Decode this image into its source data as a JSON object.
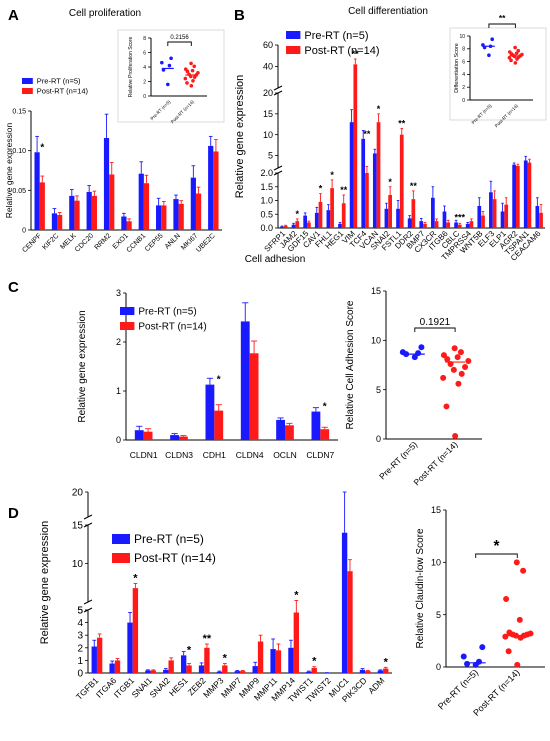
{
  "colors": {
    "pre": "#1a1aff",
    "post": "#ff1a1a",
    "axis": "#000000"
  },
  "panels": {
    "A": {
      "letter": "A",
      "title": "Cell proliferation"
    },
    "B": {
      "letter": "B",
      "title": "Cell differentiation"
    },
    "C": {
      "letter": "C",
      "title": "Cell adhesion"
    },
    "D": {
      "letter": "D",
      "title": ""
    }
  },
  "chart_data": [
    {
      "id": "A-bar",
      "type": "bar",
      "ylabel": "Relative gene expression",
      "ylim": [
        0,
        0.15
      ],
      "yticks": [
        0,
        0.05,
        0.1,
        0.15
      ],
      "ytick_labels": [
        "0",
        "0.05",
        "0.10",
        "0.15"
      ],
      "categories": [
        "CENPF",
        "KIF2C",
        "MELK",
        "CDC20",
        "RRM2",
        "EXO1",
        "CCNB1",
        "CEP55",
        "ANLN",
        "MKI67",
        "UBE2C"
      ],
      "series": [
        {
          "name": "Pre-RT (n=5)",
          "values": [
            0.098,
            0.021,
            0.043,
            0.048,
            0.116,
            0.017,
            0.071,
            0.031,
            0.039,
            0.066,
            0.106
          ],
          "errors": [
            0.02,
            0.006,
            0.008,
            0.008,
            0.03,
            0.004,
            0.015,
            0.009,
            0.005,
            0.015,
            0.012
          ]
        },
        {
          "name": "Post-RT (n=14)",
          "values": [
            0.06,
            0.019,
            0.037,
            0.043,
            0.07,
            0.011,
            0.059,
            0.031,
            0.033,
            0.046,
            0.099
          ],
          "errors": [
            0.008,
            0.003,
            0.006,
            0.006,
            0.015,
            0.003,
            0.01,
            0.005,
            0.004,
            0.008,
            0.015
          ]
        }
      ],
      "significance": [
        {
          "index": 0,
          "label": "*"
        }
      ]
    },
    {
      "id": "A-score",
      "type": "scatter",
      "ylabel": "Relative Proliferation Score",
      "ylim": [
        0,
        8
      ],
      "yticks": [
        0,
        2,
        4,
        6,
        8
      ],
      "categories": [
        "Pre-RT (n=5)",
        "Post-RT (n=14)"
      ],
      "series": [
        {
          "name": "Pre-RT (n=5)",
          "values": [
            1.6,
            3.6,
            4.2,
            4.6,
            5.2
          ],
          "center": 3.8
        },
        {
          "name": "Post-RT (n=14)",
          "values": [
            1.4,
            1.8,
            2.1,
            2.4,
            2.6,
            2.7,
            2.9,
            3.0,
            3.2,
            3.4,
            3.5,
            3.7,
            4.1,
            4.5
          ],
          "center": 2.9
        }
      ],
      "pvalue": "0.2156"
    },
    {
      "id": "B-bar",
      "type": "bar",
      "ylabel": "Relative gene expression",
      "segments": [
        {
          "range": [
            0,
            2
          ],
          "ticks": [
            0,
            0.5,
            1,
            1.5,
            2
          ],
          "tick_labels": [
            "0.0",
            "0.5",
            "1.0",
            "1.5",
            "2.0"
          ]
        },
        {
          "range": [
            2,
            20
          ],
          "ticks": [
            5,
            10,
            15,
            20
          ],
          "tick_labels": [
            "5",
            "10",
            "15",
            "20"
          ]
        },
        {
          "range": [
            20,
            60
          ],
          "ticks": [
            40,
            60
          ],
          "tick_labels": [
            "40",
            "60"
          ]
        }
      ],
      "categories": [
        "SFRP1",
        "JAM2",
        "GDF15",
        "CAV1",
        "FHL1",
        "HEG1",
        "VIM",
        "TCF4",
        "VCAN",
        "SNAI2",
        "FSTL1",
        "DDR2",
        "BMP7",
        "CX3CR",
        "ITGB6",
        "CBLC",
        "TMPRSS4",
        "WNT5B",
        "ELF3",
        "ELP1",
        "AGR2",
        "TSPAN1",
        "CEACAM6"
      ],
      "series": [
        {
          "name": "Pre-RT (n=5)",
          "values": [
            0.05,
            0.12,
            0.45,
            0.55,
            0.65,
            0.15,
            13.0,
            9.0,
            5.5,
            0.7,
            0.7,
            0.35,
            0.25,
            1.1,
            0.6,
            0.2,
            0.15,
            0.8,
            1.3,
            0.6,
            2.8,
            3.8,
            0.8
          ],
          "errors": [
            0.02,
            0.05,
            0.1,
            0.2,
            0.2,
            0.05,
            3.0,
            2.0,
            1.0,
            0.2,
            0.3,
            0.1,
            0.1,
            0.4,
            0.2,
            0.08,
            0.05,
            0.3,
            0.4,
            0.3,
            0.4,
            1.0,
            0.3
          ]
        },
        {
          "name": "Post-RT (n=14)",
          "values": [
            0.08,
            0.25,
            0.2,
            0.95,
            1.45,
            0.9,
            42.0,
            2.0,
            13.0,
            1.2,
            10.0,
            1.05,
            0.15,
            0.25,
            0.2,
            0.12,
            0.25,
            0.45,
            1.05,
            0.85,
            2.5,
            3.3,
            0.55
          ],
          "errors": [
            0.02,
            0.08,
            0.05,
            0.3,
            0.3,
            0.3,
            5.0,
            0.4,
            2.0,
            0.3,
            1.5,
            0.3,
            0.05,
            0.08,
            0.08,
            0.05,
            0.08,
            0.15,
            0.3,
            0.25,
            0.4,
            0.8,
            0.3
          ]
        }
      ],
      "significance": [
        {
          "index": 1,
          "label": "*"
        },
        {
          "index": 3,
          "label": "*"
        },
        {
          "index": 4,
          "label": "*"
        },
        {
          "index": 5,
          "label": "**"
        },
        {
          "index": 6,
          "label": "**"
        },
        {
          "index": 7,
          "label": "**"
        },
        {
          "index": 8,
          "label": "*"
        },
        {
          "index": 9,
          "label": "*"
        },
        {
          "index": 10,
          "label": "**"
        },
        {
          "index": 11,
          "label": "**"
        },
        {
          "index": 15,
          "label": "***"
        }
      ]
    },
    {
      "id": "B-score",
      "type": "scatter",
      "ylabel": "Differentiation Score",
      "ylim": [
        0,
        10
      ],
      "yticks": [
        0,
        2,
        4,
        6,
        8,
        10
      ],
      "categories": [
        "Pre-RT (n=5)",
        "Post-RT (n=14)"
      ],
      "series": [
        {
          "name": "Pre-RT (n=5)",
          "values": [
            7.0,
            8.2,
            8.4,
            8.6,
            9.5
          ],
          "center": 8.4
        },
        {
          "name": "Post-RT (n=14)",
          "values": [
            5.8,
            6.2,
            6.4,
            6.6,
            6.7,
            6.8,
            6.9,
            7.0,
            7.1,
            7.2,
            7.3,
            7.5,
            7.7,
            8.2
          ],
          "center": 6.9
        }
      ],
      "significance_label": "**"
    },
    {
      "id": "C-bar",
      "type": "bar",
      "ylabel": "Relative gene expression",
      "ylim": [
        0,
        3
      ],
      "yticks": [
        0,
        1,
        2,
        3
      ],
      "categories": [
        "CLDN1",
        "CLDN3",
        "CDH1",
        "CLDN4",
        "OCLN",
        "CLDN7"
      ],
      "series": [
        {
          "name": "Pre-RT (n=5)",
          "values": [
            0.2,
            0.1,
            1.13,
            2.42,
            0.41,
            0.58
          ],
          "errors": [
            0.08,
            0.03,
            0.13,
            0.38,
            0.04,
            0.08
          ]
        },
        {
          "name": "Post-RT (n=14)",
          "values": [
            0.17,
            0.07,
            0.6,
            1.77,
            0.3,
            0.22
          ],
          "errors": [
            0.06,
            0.02,
            0.12,
            0.25,
            0.04,
            0.04
          ]
        }
      ],
      "significance": [
        {
          "index": 2,
          "label": "*"
        },
        {
          "index": 5,
          "label": "*"
        }
      ]
    },
    {
      "id": "C-score",
      "type": "scatter",
      "ylabel": "Relative Cell Adhesion Score",
      "ylim": [
        0,
        15
      ],
      "yticks": [
        0,
        5,
        10,
        15
      ],
      "categories": [
        "Pre-RT (n=5)",
        "Post-RT (n=14)"
      ],
      "series": [
        {
          "name": "Pre-RT (n=5)",
          "values": [
            8.3,
            8.6,
            8.7,
            8.8,
            9.3
          ],
          "center": 8.6
        },
        {
          "name": "Post-RT (n=14)",
          "values": [
            0.3,
            3.3,
            5.6,
            6.2,
            6.6,
            7.0,
            7.3,
            7.6,
            7.9,
            8.1,
            8.3,
            8.5,
            8.8,
            9.2
          ],
          "center": 7.8
        }
      ],
      "pvalue": "0.1921"
    },
    {
      "id": "D-bar",
      "type": "bar",
      "ylabel": "Relative gene expression",
      "segments": [
        {
          "range": [
            0,
            5
          ],
          "ticks": [
            0,
            1,
            2,
            3,
            4,
            5
          ],
          "tick_labels": [
            "0",
            "1",
            "2",
            "3",
            "4",
            "5"
          ]
        },
        {
          "range": [
            5,
            15
          ],
          "ticks": [
            5,
            10,
            15
          ],
          "tick_labels": [
            "5",
            "10",
            "15"
          ]
        },
        {
          "range": [
            15,
            20
          ],
          "ticks": [
            20
          ],
          "tick_labels": [
            "20"
          ]
        }
      ],
      "categories": [
        "TGFB1",
        "ITGA6",
        "ITGB1",
        "SNAI1",
        "SNAI2",
        "HES1",
        "ZEB2",
        "MMP3",
        "MMP7",
        "MMP9",
        "MMP11",
        "MMP14",
        "TWIST1",
        "TWIST2",
        "MUC1",
        "PIK3CD",
        "ADM"
      ],
      "series": [
        {
          "name": "Pre-RT (n=5)",
          "values": [
            2.1,
            0.75,
            4.0,
            0.2,
            0.25,
            1.4,
            0.6,
            0.1,
            0.15,
            0.55,
            1.9,
            2.0,
            0.1,
            0.02,
            14.0,
            0.25,
            0.2
          ],
          "errors": [
            0.5,
            0.2,
            0.8,
            0.05,
            0.1,
            0.3,
            0.2,
            0.05,
            0.05,
            0.3,
            0.8,
            0.6,
            0.05,
            0.01,
            6.0,
            0.1,
            0.05
          ]
        },
        {
          "name": "Post-RT (n=14)",
          "values": [
            2.8,
            1.0,
            6.8,
            0.2,
            1.0,
            0.6,
            2.0,
            0.6,
            0.15,
            2.5,
            1.8,
            4.8,
            0.4,
            0.0,
            9.0,
            0.15,
            0.35
          ],
          "errors": [
            0.3,
            0.15,
            0.6,
            0.05,
            0.2,
            0.15,
            0.3,
            0.15,
            0.05,
            0.5,
            0.5,
            0.4,
            0.1,
            0.0,
            1.5,
            0.05,
            0.1
          ]
        }
      ],
      "significance": [
        {
          "index": 2,
          "label": "*"
        },
        {
          "index": 5,
          "label": "*"
        },
        {
          "index": 6,
          "label": "**"
        },
        {
          "index": 7,
          "label": "*"
        },
        {
          "index": 11,
          "label": "*"
        },
        {
          "index": 12,
          "label": "*"
        },
        {
          "index": 16,
          "label": "*"
        }
      ]
    },
    {
      "id": "D-score",
      "type": "scatter",
      "ylabel": "Relative Claudin-low Score",
      "ylim": [
        0,
        15
      ],
      "yticks": [
        0,
        5,
        10,
        15
      ],
      "categories": [
        "Pre-RT (n=5)",
        "Post-RT (n=14)"
      ],
      "series": [
        {
          "name": "Pre-RT (n=5)",
          "values": [
            0.2,
            0.3,
            0.5,
            1.0,
            1.9
          ],
          "center": 0.4
        },
        {
          "name": "Post-RT (n=14)",
          "values": [
            0.2,
            1.5,
            2.8,
            2.9,
            3.0,
            3.0,
            3.1,
            3.1,
            3.2,
            3.3,
            4.5,
            6.5,
            9.2,
            10.0
          ],
          "center": 3.0
        }
      ],
      "significance_label": "*"
    }
  ]
}
